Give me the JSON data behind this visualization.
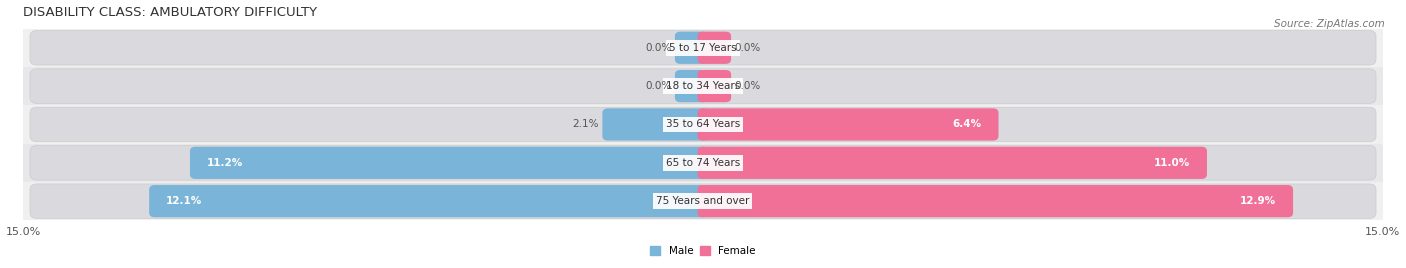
{
  "title": "DISABILITY CLASS: AMBULATORY DIFFICULTY",
  "source": "Source: ZipAtlas.com",
  "categories": [
    "5 to 17 Years",
    "18 to 34 Years",
    "35 to 64 Years",
    "65 to 74 Years",
    "75 Years and over"
  ],
  "male_values": [
    0.0,
    0.0,
    2.1,
    11.2,
    12.1
  ],
  "female_values": [
    0.0,
    0.0,
    6.4,
    11.0,
    12.9
  ],
  "male_color": "#7ab4d8",
  "female_color": "#f07098",
  "row_bg_colors": [
    "#f0f0f0",
    "#e8e8eb",
    "#f0f0f0",
    "#e8e8eb",
    "#f0f0f0"
  ],
  "bar_bg_color": "#d9d9de",
  "x_max": 15.0,
  "x_min": -15.0,
  "bar_height": 0.6,
  "title_fontsize": 9.5,
  "label_fontsize": 7.5,
  "tick_fontsize": 8,
  "source_fontsize": 7.5,
  "category_fontsize": 7.5,
  "zero_stub": 0.5
}
